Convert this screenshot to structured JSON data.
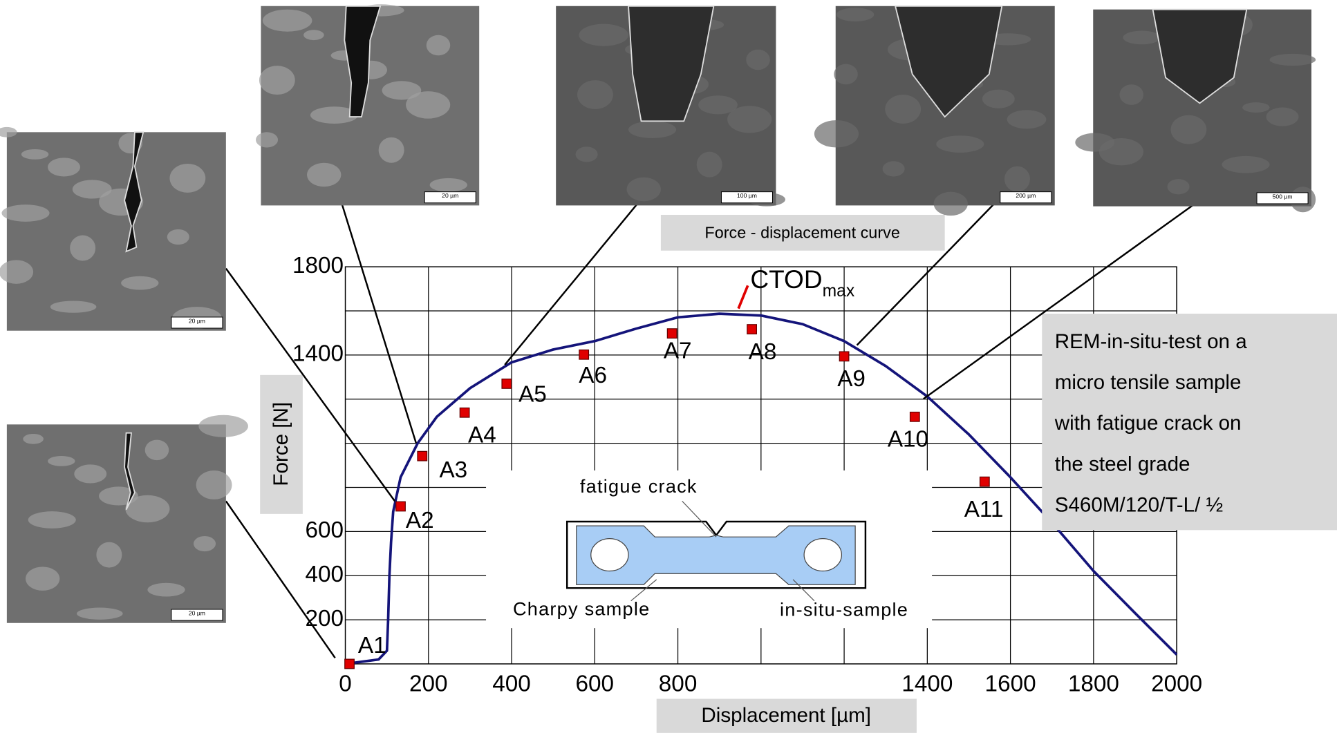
{
  "chart_data": {
    "type": "line",
    "title": "Force - displacement curve",
    "x_label": "Displacement  [µm]",
    "y_label": "Force  [N]",
    "x": [
      0,
      80,
      100,
      103,
      106,
      110,
      115,
      133,
      174,
      220,
      300,
      400,
      500,
      600,
      700,
      800,
      900,
      1000,
      1100,
      1200,
      1300,
      1400,
      1500,
      1600,
      1700,
      1800,
      1900,
      2000
    ],
    "values": [
      0,
      20,
      60,
      200,
      400,
      550,
      690,
      846,
      1000,
      1120,
      1250,
      1367,
      1425,
      1463,
      1520,
      1571,
      1587,
      1579,
      1540,
      1463,
      1350,
      1212,
      1040,
      846,
      640,
      421,
      230,
      42
    ],
    "color": "#14147a",
    "points": {
      "labels": [
        "A1",
        "A2",
        "A3",
        "A4",
        "A5",
        "A6",
        "A7",
        "A8",
        "A9",
        "A10",
        "A11"
      ],
      "x": [
        10,
        133,
        185,
        287,
        388,
        574,
        786,
        978,
        1200,
        1370,
        1538
      ],
      "y": [
        0,
        714,
        942,
        1139,
        1270,
        1402,
        1498,
        1517,
        1394,
        1120,
        826
      ],
      "color": "#e00000"
    },
    "xlim": [
      0,
      2000
    ],
    "ylim": [
      0,
      1800
    ],
    "xticks": [
      0,
      200,
      400,
      600,
      800,
      1400,
      1600,
      1800,
      2000
    ],
    "yticks": [
      200,
      400,
      600,
      1400,
      1800
    ],
    "xgrid": [
      200,
      400,
      600,
      800,
      1000,
      1200,
      1400,
      1600,
      1800,
      2000
    ],
    "ygrid": [
      200,
      400,
      600,
      800,
      1000,
      1200,
      1400,
      1600,
      1800
    ],
    "grid": true,
    "annotation": {
      "text": "CTOD",
      "subscript": "max"
    },
    "sample_labels": [
      "fatigue crack",
      "Charpy sample",
      "in-situ-sample"
    ],
    "note": [
      "REM-in-situ-test on a",
      "micro tensile sample",
      "with fatigue crack on",
      "the steel grade",
      "S460M/120/T-L/ ½"
    ]
  },
  "images": [
    {
      "scale": "20 µm"
    },
    {
      "scale": "20 µm"
    },
    {
      "scale": "20 µm"
    },
    {
      "scale": "100 µm"
    },
    {
      "scale": "200 µm"
    },
    {
      "scale": "500 µm"
    }
  ]
}
